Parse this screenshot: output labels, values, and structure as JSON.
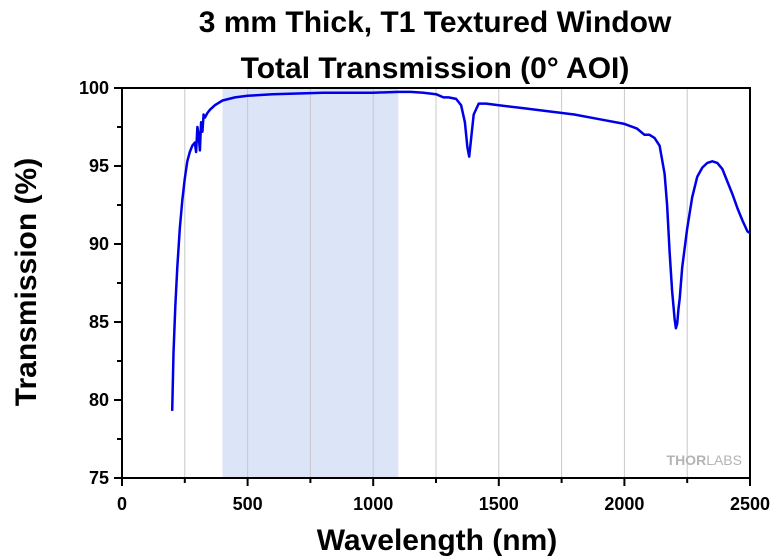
{
  "chart_data": {
    "type": "line",
    "title_lines": [
      "3 mm Thick, T1 Textured Window",
      "Total Transmission (0° AOI)"
    ],
    "xlabel": "Wavelength (nm)",
    "ylabel": "Transmission (%)",
    "xlim": [
      0,
      2500
    ],
    "ylim": [
      75,
      100
    ],
    "x_ticks": [
      0,
      500,
      1000,
      1500,
      2000,
      2500
    ],
    "y_ticks": [
      75,
      80,
      85,
      90,
      95,
      100
    ],
    "grid": "vertical-minor",
    "shaded_region": {
      "x_start": 400,
      "x_end": 1100,
      "color": "#dce5f7"
    },
    "series": [
      {
        "color": "#0000e6",
        "x": [
          200,
          205,
          212,
          220,
          230,
          240,
          250,
          260,
          270,
          280,
          290,
          295,
          300,
          305,
          310,
          315,
          320,
          325,
          330,
          340,
          350,
          370,
          400,
          450,
          500,
          600,
          700,
          800,
          900,
          1000,
          1100,
          1150,
          1200,
          1250,
          1280,
          1300,
          1330,
          1350,
          1365,
          1375,
          1382,
          1390,
          1400,
          1420,
          1450,
          1500,
          1600,
          1700,
          1800,
          1900,
          2000,
          2050,
          2080,
          2100,
          2120,
          2140,
          2160,
          2170,
          2180,
          2190,
          2200,
          2205,
          2210,
          2215,
          2220,
          2230,
          2250,
          2270,
          2290,
          2310,
          2330,
          2350,
          2370,
          2390,
          2410,
          2430,
          2450,
          2470,
          2490,
          2500
        ],
        "y": [
          79.3,
          83,
          86,
          88.5,
          91,
          92.8,
          94.2,
          95.3,
          95.9,
          96.3,
          96.5,
          95.9,
          97.5,
          97.0,
          96.0,
          97.8,
          97.2,
          98.3,
          98.1,
          98.4,
          98.6,
          98.9,
          99.2,
          99.4,
          99.5,
          99.6,
          99.65,
          99.7,
          99.7,
          99.7,
          99.75,
          99.75,
          99.7,
          99.6,
          99.4,
          99.4,
          99.3,
          98.9,
          97.8,
          96.2,
          95.6,
          96.8,
          98.3,
          99.0,
          99.0,
          98.9,
          98.7,
          98.5,
          98.3,
          98.0,
          97.7,
          97.4,
          97.0,
          97.0,
          96.8,
          96.3,
          94.5,
          92.5,
          89.5,
          87.0,
          85.2,
          84.6,
          84.9,
          85.8,
          86.5,
          88.5,
          91.0,
          93.0,
          94.3,
          94.9,
          95.2,
          95.3,
          95.2,
          94.8,
          94.0,
          93.2,
          92.3,
          91.5,
          90.8,
          90.7
        ]
      }
    ]
  },
  "logo": {
    "part1": "THOR",
    "part2": "LABS"
  }
}
